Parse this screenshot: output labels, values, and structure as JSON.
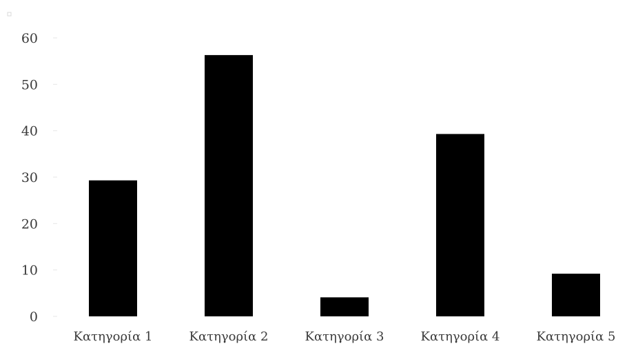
{
  "chart_data": {
    "type": "bar",
    "title": "",
    "xlabel": "",
    "ylabel": "",
    "categories": [
      "Κατηγορία 1",
      "Κατηγορία 2",
      "Κατηγορία 3",
      "Κατηγορία 4",
      "Κατηγορία 5"
    ],
    "values": [
      29.3,
      56.3,
      4.1,
      39.3,
      9.2
    ],
    "ylim": [
      0,
      60
    ],
    "yticks": [
      0,
      10,
      20,
      30,
      40,
      50,
      60
    ],
    "grid": false,
    "legend": "none",
    "bar_color": "#000000"
  }
}
